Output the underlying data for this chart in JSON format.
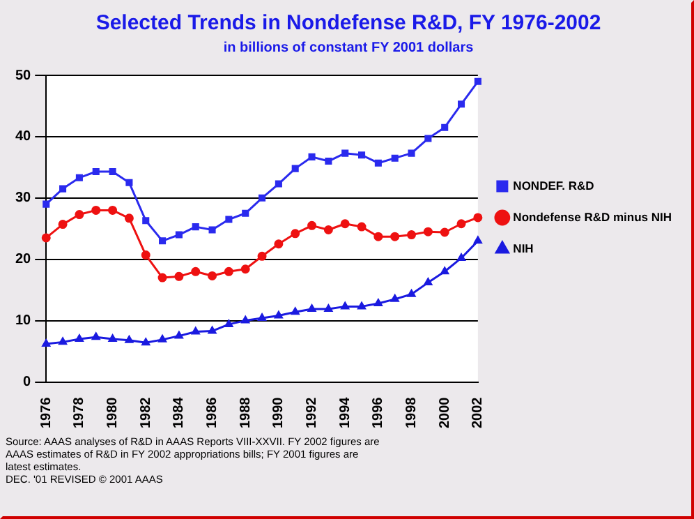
{
  "chart_data": {
    "type": "line",
    "title": "Selected Trends in Nondefense R&D, FY 1976-2002",
    "subtitle": "in billions of constant FY 2001 dollars",
    "categories": [
      "1976",
      null,
      "1978",
      null,
      "1980",
      null,
      "1982",
      null,
      "1984",
      null,
      "1986",
      null,
      "1988",
      null,
      "1990",
      null,
      "1992",
      null,
      "1994",
      null,
      "1996",
      null,
      "1998",
      null,
      "2000",
      null,
      "2002"
    ],
    "series": [
      {
        "name": "NONDEF. R&D",
        "color": "#2a2aee",
        "marker": "square",
        "values": [
          29,
          31.5,
          33.3,
          34.3,
          34.3,
          32.5,
          26.3,
          23,
          24,
          25.3,
          24.8,
          26.5,
          27.5,
          30,
          32.3,
          34.8,
          36.7,
          36,
          37.3,
          37,
          35.7,
          36.5,
          37.3,
          39.7,
          41.5,
          45.3,
          49
        ]
      },
      {
        "name": "Nondefense R&D minus NIH",
        "color": "#ee1111",
        "marker": "circle",
        "values": [
          23.5,
          25.7,
          27.3,
          28,
          28,
          26.7,
          20.7,
          17,
          17.2,
          18,
          17.3,
          18,
          18.4,
          20.5,
          22.5,
          24.2,
          25.5,
          24.8,
          25.8,
          25.3,
          23.7,
          23.7,
          24,
          24.5,
          24.4,
          25.8,
          26.8
        ]
      },
      {
        "name": "NIH",
        "color": "#1a1ae0",
        "marker": "triangle",
        "values": [
          6.2,
          6.5,
          7,
          7.3,
          7,
          6.8,
          6.4,
          6.9,
          7.5,
          8.2,
          8.3,
          9.4,
          10,
          10.4,
          10.8,
          11.4,
          11.9,
          11.9,
          12.3,
          12.3,
          12.8,
          13.5,
          14.3,
          16.2,
          18,
          20.2,
          23
        ]
      }
    ],
    "ylim": [
      0,
      50
    ],
    "yticks": [
      0,
      10,
      20,
      30,
      40,
      50
    ],
    "grid": "y",
    "legend": "right",
    "annotations": [
      "Source: AAAS analyses of R&D in AAAS Reports VIII-XXVII. FY 2002 figures are AAAS estimates of R&D in FY 2002 appropriations bills; FY 2001 figures are latest estimates.",
      "DEC. '01 REVISED © 2001 AAAS"
    ]
  }
}
